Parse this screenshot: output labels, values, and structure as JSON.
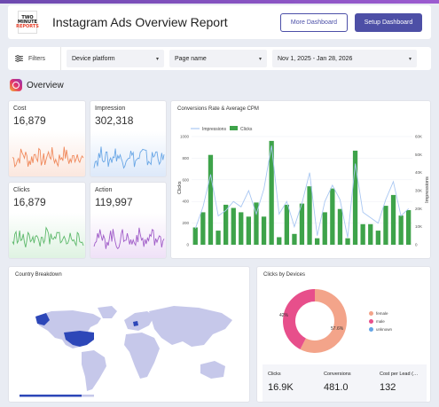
{
  "header": {
    "title": "Instagram Ads Overview Report",
    "logo_line1": "TWO",
    "logo_line2": "MINUTE",
    "logo_line3": "REPORTS",
    "more_button": "More Dashboard",
    "setup_button": "Setup Dashboard"
  },
  "filters": {
    "label": "Filters",
    "device": "Device platform",
    "page": "Page name",
    "date": "Nov 1, 2025 - Jan 28, 2026"
  },
  "section_title": "Overview",
  "kpis": [
    {
      "label": "Cost",
      "value": "16,879",
      "color": "#f08a5d"
    },
    {
      "label": "Impression",
      "value": "302,318",
      "color": "#6aa7e6"
    },
    {
      "label": "Clicks",
      "value": "16,879",
      "color": "#5cb86a"
    },
    {
      "label": "Action",
      "value": "119,997",
      "color": "#a05cc8"
    }
  ],
  "combo": {
    "title": "Conversions Rate & Average CPM",
    "legend_impressions": "Impressions",
    "legend_clicks": "Clicks",
    "ylabel_left": "Clicks",
    "ylabel_right": "Impressions"
  },
  "chart_data": {
    "type": "bar",
    "title": "Conversions Rate & Average CPM",
    "ylabel": "Clicks",
    "y2label": "Impressions",
    "ylim": [
      0,
      1000
    ],
    "y2lim": [
      0,
      60000
    ],
    "yticks": [
      "0",
      "200",
      "400",
      "600",
      "800",
      "1000"
    ],
    "y2ticks": [
      "0",
      "10K",
      "20K",
      "30K",
      "40K",
      "50K",
      "60K"
    ],
    "series": [
      {
        "name": "Clicks",
        "type": "bar",
        "color": "#3ea34a",
        "values": [
          160,
          300,
          830,
          130,
          370,
          340,
          300,
          260,
          390,
          260,
          960,
          70,
          370,
          100,
          380,
          540,
          60,
          300,
          520,
          330,
          60,
          870,
          190,
          190,
          130,
          360,
          460,
          270,
          320
        ]
      },
      {
        "name": "Impressions",
        "type": "line",
        "color": "#a9c7f2",
        "values": [
          9000,
          21000,
          39000,
          16000,
          19000,
          24000,
          21000,
          30000,
          17000,
          31000,
          55000,
          17000,
          24000,
          10000,
          23000,
          40000,
          5000,
          24000,
          33000,
          25000,
          4000,
          45000,
          18000,
          15000,
          12000,
          25000,
          35000,
          16000,
          20000
        ]
      }
    ]
  },
  "map": {
    "title": "Country Breakdown",
    "highlight_color": "#2d47b8",
    "land_color": "#c6c8ea"
  },
  "donut": {
    "title": "Clicks by Devices",
    "slices": [
      {
        "name": "female",
        "value": 57.6,
        "color": "#f3a48a"
      },
      {
        "name": "male",
        "value": 42.4,
        "color": "#e74f8b"
      },
      {
        "name": "unknown",
        "value": 0,
        "color": "#63a4e6"
      }
    ],
    "label_female": "57.6%",
    "label_male": "42%"
  },
  "stats": [
    {
      "label": "Clicks",
      "value": "16.9K"
    },
    {
      "label": "Conversions",
      "value": "481.0"
    },
    {
      "label": "Cost per Lead (…",
      "value": "132"
    }
  ]
}
